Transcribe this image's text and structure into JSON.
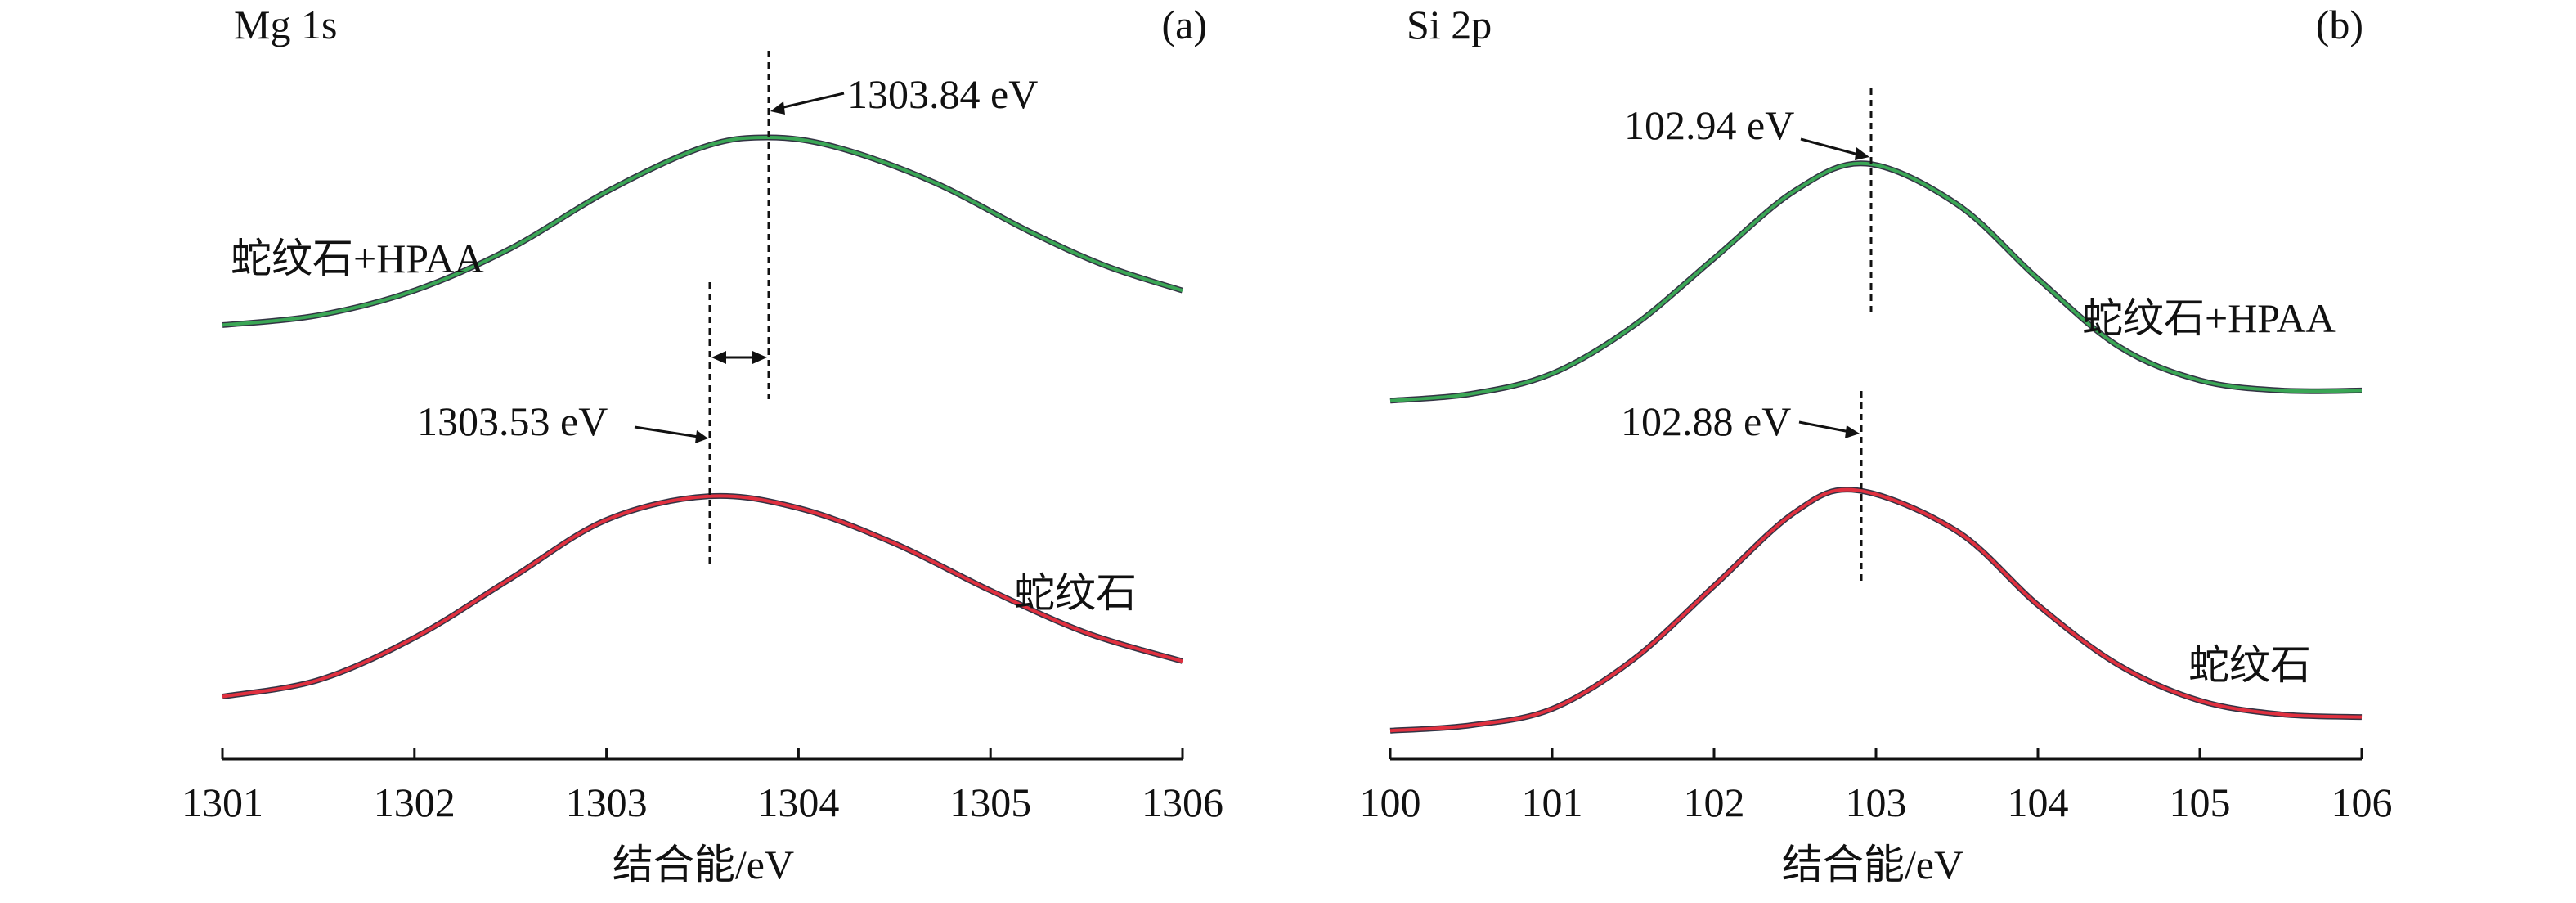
{
  "chart_data": [
    {
      "type": "line",
      "panel_label": "(a)",
      "element_label": "Mg 1s",
      "xlabel": "结合能/eV",
      "ylabel": "",
      "xlim": [
        1301,
        1306
      ],
      "xticks": [
        "1301",
        "1302",
        "1303",
        "1304",
        "1305",
        "1306"
      ],
      "grid": false,
      "colors": {
        "treated": "#3aa655",
        "raw": "#e0303f",
        "envelope": "#333344"
      },
      "series": [
        {
          "name": "蛇纹石+HPAA",
          "color": "#3aa655",
          "peak_x": 1303.84,
          "x": [
            1301.0,
            1301.5,
            1302.0,
            1302.5,
            1303.0,
            1303.5,
            1303.84,
            1304.2,
            1304.7,
            1305.2,
            1305.6,
            1306.0
          ],
          "y": [
            0.24,
            0.28,
            0.38,
            0.55,
            0.78,
            0.96,
            1.0,
            0.96,
            0.82,
            0.62,
            0.48,
            0.38
          ]
        },
        {
          "name": "蛇纹石",
          "color": "#e0303f",
          "peak_x": 1303.53,
          "x": [
            1301.0,
            1301.5,
            1302.0,
            1302.5,
            1303.0,
            1303.53,
            1304.0,
            1304.5,
            1305.0,
            1305.5,
            1306.0
          ],
          "y": [
            0.05,
            0.12,
            0.3,
            0.55,
            0.8,
            0.9,
            0.85,
            0.7,
            0.5,
            0.32,
            0.2
          ]
        }
      ],
      "annotations": [
        {
          "text": "1303.84 eV",
          "x": 1303.84
        },
        {
          "text": "1303.53 eV",
          "x": 1303.53
        }
      ]
    },
    {
      "type": "line",
      "panel_label": "(b)",
      "element_label": "Si 2p",
      "xlabel": "结合能/eV",
      "ylabel": "",
      "xlim": [
        100,
        106
      ],
      "xticks": [
        "100",
        "101",
        "102",
        "103",
        "104",
        "105",
        "106"
      ],
      "grid": false,
      "colors": {
        "treated": "#3aa655",
        "raw": "#e0303f",
        "envelope": "#333344"
      },
      "series": [
        {
          "name": "蛇纹石+HPAA",
          "color": "#3aa655",
          "peak_x": 102.94,
          "x": [
            100.0,
            100.5,
            101.0,
            101.5,
            102.0,
            102.5,
            102.94,
            103.5,
            104.0,
            104.5,
            105.0,
            105.5,
            106.0
          ],
          "y": [
            0.3,
            0.32,
            0.38,
            0.52,
            0.72,
            0.92,
            1.0,
            0.88,
            0.66,
            0.46,
            0.36,
            0.33,
            0.33
          ]
        },
        {
          "name": "蛇纹石",
          "color": "#e0303f",
          "peak_x": 102.88,
          "x": [
            100.0,
            100.5,
            101.0,
            101.5,
            102.0,
            102.5,
            102.88,
            103.5,
            104.0,
            104.5,
            105.0,
            105.5,
            106.0
          ],
          "y": [
            0.02,
            0.04,
            0.1,
            0.28,
            0.55,
            0.82,
            0.9,
            0.75,
            0.48,
            0.26,
            0.13,
            0.08,
            0.07
          ]
        }
      ],
      "annotations": [
        {
          "text": "102.94 eV",
          "x": 102.94
        },
        {
          "text": "102.88 eV",
          "x": 102.88
        }
      ]
    }
  ]
}
